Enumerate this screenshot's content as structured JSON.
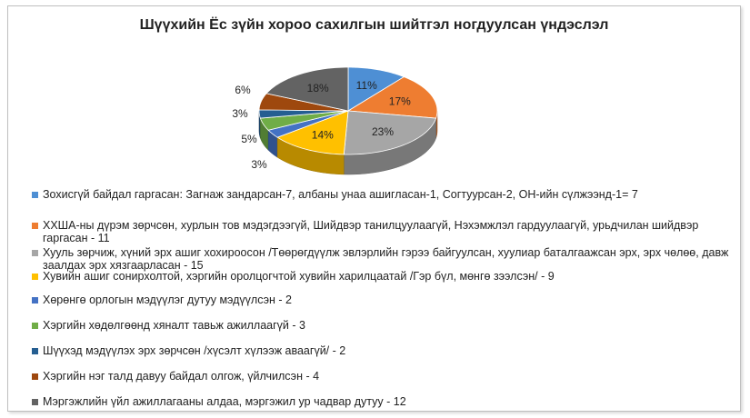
{
  "chart_data": {
    "type": "pie",
    "title": "Шүүхийн Ёс зүйн хороо сахилгын шийтгэл ногдуулсан үндэслэл",
    "slices": [
      {
        "label": "Зохисгүй байдал гаргасан: Загнаж зандарсан-7, албаны унаа ашигласан-1, Согтуурсан-2, ОН-ийн сүлжээнд-1= 7",
        "value": 7,
        "percent_label": "11%",
        "color": "#4e8fd4"
      },
      {
        "label": "ХХША-ны дүрэм зөрчсөн, хурлын тов мэдэгдээгүй,  Шийдвэр танилцуулаагүй,  Нэхэмжлэл гардуулаагүй, урьдчилан шийдвэр гаргасан - 11",
        "value": 11,
        "percent_label": "17%",
        "color": "#ee7d31"
      },
      {
        "label": "Хууль зөрчиж, хүний эрх ашиг хохироосон /Төөрөгдүүлж эвлэрлийн гэрээ байгуулсан, хуулиар баталгаажсан эрх, эрх чөлөө, давж заалдах эрх хязгаарласан - 15",
        "value": 15,
        "percent_label": "23%",
        "color": "#a6a6a6"
      },
      {
        "label": "Хувийн ашиг сонирхолтой, хэргийн оролцогчтой хувийн харилцаатай /Гэр бүл, мөнгө зээлсэн/ - 9",
        "value": 9,
        "percent_label": "14%",
        "color": "#ffc000"
      },
      {
        "label": "Хөрөнгө орлогын мэдүүлэг дутуу мэдүүлсэн - 2",
        "value": 2,
        "percent_label": "3%",
        "color": "#4472c4"
      },
      {
        "label": "Хэргийн хөдөлгөөнд хяналт тавьж ажиллаагүй - 3",
        "value": 3,
        "percent_label": "5%",
        "color": "#70ad47"
      },
      {
        "label": "Шүүхэд мэдүүлэх эрх зөрчсөн /хүсэлт хүлээж аваагүй/ - 2",
        "value": 2,
        "percent_label": "3%",
        "color": "#255e91"
      },
      {
        "label": "Хэргийн нэг талд давуу байдал олгож, үйлчилсэн - 4",
        "value": 4,
        "percent_label": "6%",
        "color": "#9e480e"
      },
      {
        "label": "Мэргэжлийн үйл ажиллагааны алдаа, мэргэжил ур чадвар дутуу - 12",
        "value": 12,
        "percent_label": "18%",
        "color": "#636363"
      }
    ],
    "legend_position": "bottom"
  }
}
